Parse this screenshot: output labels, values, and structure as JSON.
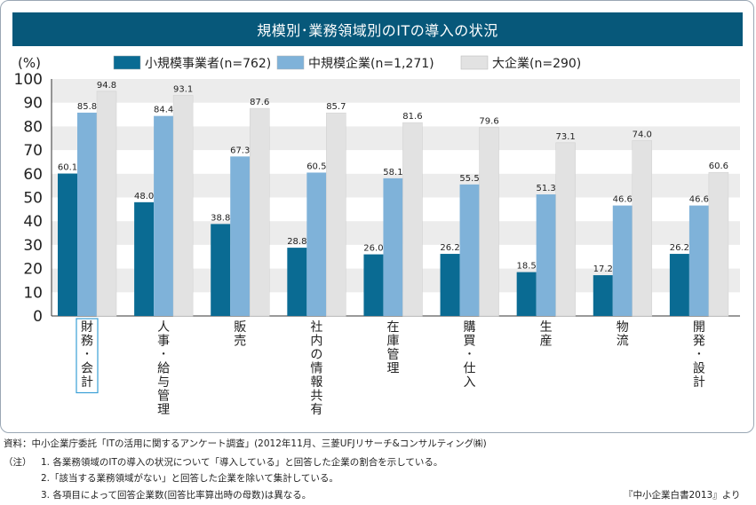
{
  "title": "規模別･業務領域別のITの導入の状況",
  "chart_data": {
    "type": "bar",
    "y_unit_label": "(%)",
    "ylim": [
      0,
      100
    ],
    "y_ticks": [
      0,
      10,
      20,
      30,
      40,
      50,
      60,
      70,
      80,
      90,
      100
    ],
    "grid": "alternating horizontal bands",
    "legend_position": "top",
    "categories": [
      "財務･会計",
      "人事･給与管理",
      "販売",
      "社内の情報共有",
      "在庫管理",
      "購買･仕入",
      "生産",
      "物流",
      "開発･設計"
    ],
    "highlighted_category": "財務･会計",
    "series": [
      {
        "name": "小規模事業者(n=762)",
        "color": "#0a6b93",
        "values": [
          60.1,
          48.0,
          38.8,
          28.8,
          26.0,
          26.2,
          18.5,
          17.2,
          26.2
        ]
      },
      {
        "name": "中規模企業(n=1,271)",
        "color": "#7fb2d9",
        "values": [
          85.8,
          84.4,
          67.3,
          60.5,
          58.1,
          55.5,
          51.3,
          46.6,
          46.6
        ]
      },
      {
        "name": "大企業(n=290)",
        "color": "#e2e2e2",
        "values": [
          94.8,
          93.1,
          87.6,
          85.7,
          81.6,
          79.6,
          73.1,
          74.0,
          60.6
        ]
      }
    ]
  },
  "notes": {
    "source": "資料：中小企業庁委託「ITの活用に関するアンケート調査」(2012年11月、三菱UFJリサーチ&コンサルティング㈱)",
    "note_label": "（注）",
    "note1": "1. 各業務領域のITの導入の状況について「導入している」と回答した企業の割合を示している。",
    "note2": "2.「該当する業務領域がない」と回答した企業を除いて集計している。",
    "note3": "3. 各項目によって回答企業数(回答比率算出時の母数)は異なる。",
    "citation": "『中小企業白書2013』より"
  }
}
